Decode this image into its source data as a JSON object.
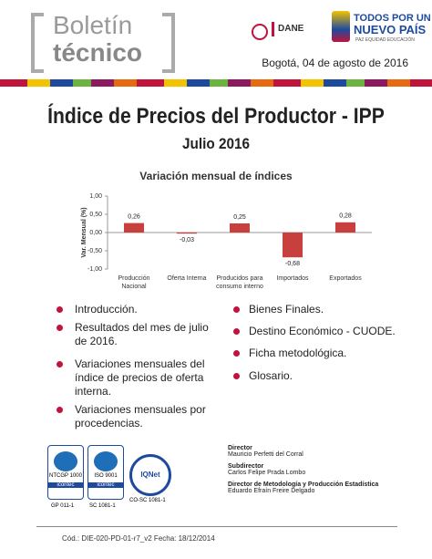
{
  "header": {
    "title_line1": "Boletín",
    "title_line2": "técnico",
    "logo_dane": "DANE",
    "logo_slogan1": "TODOS POR UN",
    "logo_slogan2": "NUEVO PAÍS",
    "logo_slogan3": "PAZ EQUIDAD EDUCACIÓN",
    "date": "Bogotá, 04 de agosto de 2016"
  },
  "main_title": "Índice de Precios del Productor - IPP",
  "subtitle": "Julio 2016",
  "chart_data": {
    "type": "bar",
    "title": "Variación mensual de índices",
    "y_label": "Var. Mensual (%)",
    "categories": [
      "Producción Nacional",
      "Oferta Interna",
      "Producidos para consumo interno",
      "Importados",
      "Exportados"
    ],
    "values": [
      0.26,
      -0.03,
      0.25,
      -0.68,
      0.28
    ],
    "value_labels": [
      "0,26",
      "-0,03",
      "0,25",
      "-0,68",
      "0,28"
    ],
    "color": "#c8403d",
    "ylim": [
      -1,
      1
    ],
    "yticks": [
      {
        "value": 1,
        "label": "1,00"
      },
      {
        "value": 0.5,
        "label": "0,50"
      },
      {
        "value": 0,
        "label": "0,00"
      },
      {
        "value": -0.5,
        "label": "-0,50"
      },
      {
        "value": -1,
        "label": "-1,00"
      }
    ],
    "grid": false
  },
  "contents_left": [
    "Introducción.",
    "Resultados del mes de julio de 2016.",
    "Variaciones mensuales del índice de precios de oferta interna.",
    "Variaciones mensuales por procedencias."
  ],
  "contents_right": [
    "Bienes Finales.",
    "Destino Económico - CUODE.",
    "Ficha metodológica.",
    "Glosario."
  ],
  "certifications": {
    "cert1": "NTCGP 1000",
    "cert1_code": "GP 011-1",
    "cert2": "ISO 9001",
    "cert2_code": "SC 1081-1",
    "issuer": "icontec",
    "cert3": "IQNet",
    "cert3_code": "CO-SC 1081-1"
  },
  "staff": [
    {
      "role": "Director",
      "name": "Mauricio Perfetti del Corral"
    },
    {
      "role": "Subdirector",
      "name": "Carlos Felipe Prada Lombo"
    },
    {
      "role": "Director de Metodología y Producción Estadística",
      "name": "Eduardo Efraín Freire Delgado"
    }
  ],
  "footer": "Cód.: DIE-020-PD-01-r7_v2  Fecha: 18/12/2014"
}
